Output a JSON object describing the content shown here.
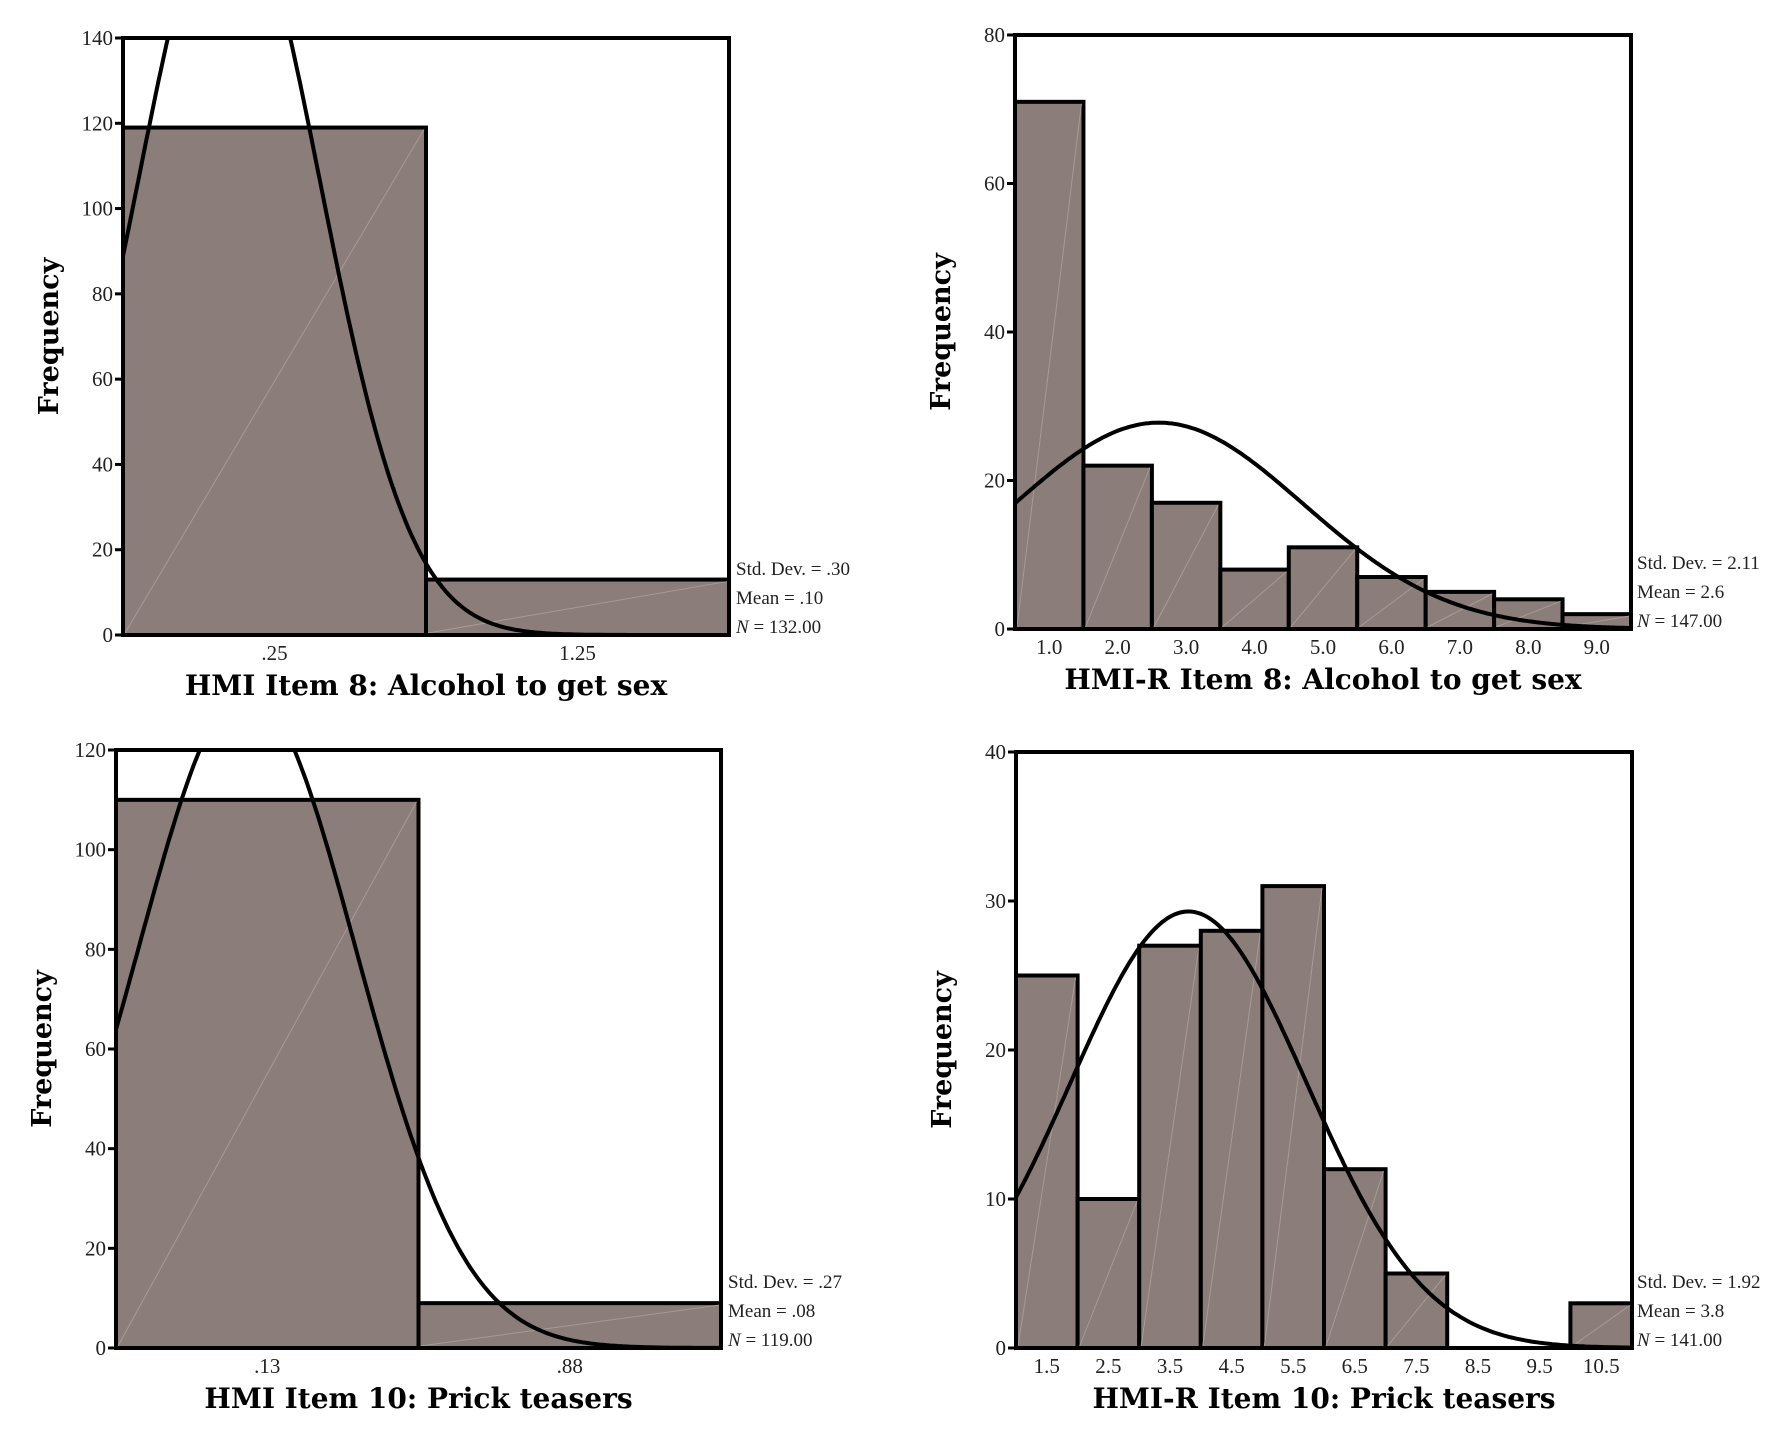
{
  "chart_data": [
    {
      "type": "bar",
      "title": "HMI Item 8: Alcohol to get sex",
      "ylabel": "Frequency",
      "xlabel": "",
      "ylim": [
        0,
        140
      ],
      "yticks": [
        "0",
        "20",
        "40",
        "60",
        "80",
        "100",
        "120",
        "140"
      ],
      "categories": [
        ".25",
        "1.25"
      ],
      "values": [
        119,
        13
      ],
      "stats": {
        "std_dev": "Std. Dev. = .30",
        "mean": "Mean = .10",
        "n_label": "N",
        "n_value": " = 132.00"
      },
      "normal_curve": {
        "mean": 0.1,
        "sd": 0.3,
        "n": 132,
        "bin_width": 1
      }
    },
    {
      "type": "bar",
      "title": "HMI-R Item 8: Alcohol to get sex",
      "ylabel": "Frequency",
      "xlabel": "",
      "ylim": [
        0,
        80
      ],
      "yticks": [
        "0",
        "20",
        "40",
        "60",
        "80"
      ],
      "categories": [
        "1.0",
        "2.0",
        "3.0",
        "4.0",
        "5.0",
        "6.0",
        "7.0",
        "8.0",
        "9.0"
      ],
      "values": [
        71,
        22,
        17,
        8,
        11,
        7,
        5,
        4,
        2
      ],
      "stats": {
        "std_dev": "Std. Dev. = 2.11",
        "mean": "Mean = 2.6",
        "n_label": "N",
        "n_value": " = 147.00"
      },
      "normal_curve": {
        "mean": 2.6,
        "sd": 2.11,
        "n": 147,
        "bin_width": 1
      }
    },
    {
      "type": "bar",
      "title": "HMI Item 10: Prick teasers",
      "ylabel": "Frequency",
      "xlabel": "",
      "ylim": [
        0,
        120
      ],
      "yticks": [
        "0",
        "20",
        "40",
        "60",
        "80",
        "100",
        "120"
      ],
      "categories": [
        ".13",
        ".88"
      ],
      "values": [
        110,
        9
      ],
      "stats": {
        "std_dev": "Std. Dev. = .27",
        "mean": "Mean = .08",
        "n_label": "N",
        "n_value": " = 119.00"
      },
      "normal_curve": {
        "mean": 0.08,
        "sd": 0.27,
        "n": 119,
        "bin_width": 0.75
      }
    },
    {
      "type": "bar",
      "title": "HMI-R Item 10: Prick teasers",
      "ylabel": "Frequency",
      "xlabel": "",
      "ylim": [
        0,
        40
      ],
      "yticks": [
        "0",
        "10",
        "20",
        "30",
        "40"
      ],
      "categories": [
        "1.5",
        "2.5",
        "3.5",
        "4.5",
        "5.5",
        "6.5",
        "7.5",
        "8.5",
        "9.5",
        "10.5"
      ],
      "values": [
        25,
        10,
        27,
        28,
        31,
        12,
        5,
        0,
        0,
        3
      ],
      "stats": {
        "std_dev": "Std. Dev. = 1.92",
        "mean": "Mean = 3.8",
        "n_label": "N",
        "n_value": " = 141.00"
      },
      "normal_curve": {
        "mean": 3.8,
        "sd": 1.92,
        "n": 141,
        "bin_width": 1
      }
    }
  ],
  "colors": {
    "bar_fill": "#8b7d79",
    "outline": "#000000"
  }
}
